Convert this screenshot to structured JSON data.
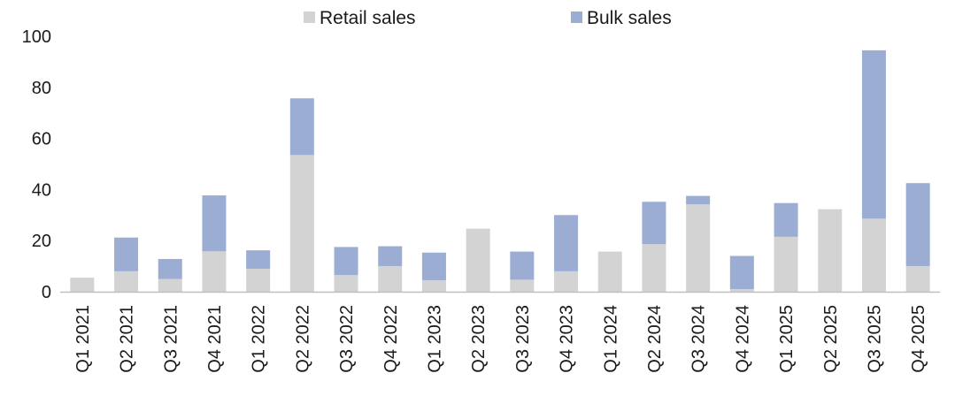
{
  "chart_data": {
    "type": "bar",
    "stacked": true,
    "title": "",
    "xlabel": "",
    "ylabel": "",
    "ylim": [
      0,
      100
    ],
    "yticks": [
      0,
      20,
      40,
      60,
      80,
      100
    ],
    "grid": false,
    "legend_position": "top",
    "categories": [
      "Q1 2021",
      "Q2 2021",
      "Q3 2021",
      "Q4 2021",
      "Q1 2022",
      "Q2 2022",
      "Q3 2022",
      "Q4 2022",
      "Q1 2023",
      "Q2 2023",
      "Q3 2023",
      "Q4 2023",
      "Q1 2024",
      "Q2 2024",
      "Q3 2024",
      "Q4 2024",
      "Q1 2025",
      "Q2 2025",
      "Q3 2025",
      "Q4 2025"
    ],
    "series": [
      {
        "name": "Retail sales",
        "color": "#d3d3d3",
        "values": [
          5.5,
          8,
          5,
          15.8,
          9,
          53.5,
          6.5,
          10,
          4.5,
          24.7,
          4.7,
          8,
          15.7,
          18.6,
          34.2,
          1,
          21.5,
          32.3,
          28.6,
          10
        ]
      },
      {
        "name": "Bulk sales",
        "color": "#9badd3",
        "values": [
          0,
          13.2,
          7.8,
          21.9,
          7.2,
          22.2,
          11,
          7.8,
          10.8,
          0,
          11,
          22,
          0,
          16.6,
          3.3,
          13,
          13.2,
          0,
          65.9,
          32.5
        ]
      }
    ]
  }
}
